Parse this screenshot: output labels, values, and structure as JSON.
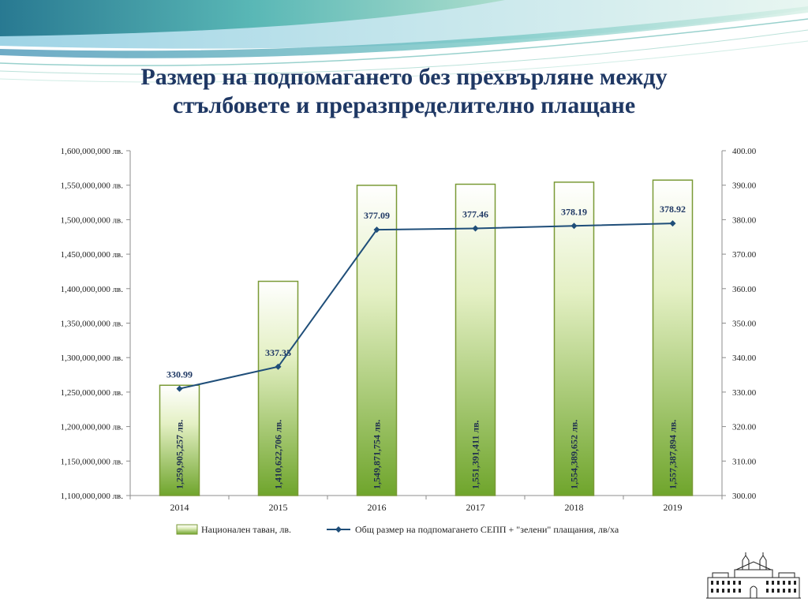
{
  "title": {
    "line1": "Размер на подпомагането без прехвърляне между",
    "line2": "стълбовете и преразпределително плащане"
  },
  "colors": {
    "title": "#1f3864",
    "line": "#1f4e79",
    "bar_top": "#ffffff",
    "bar_bottom": "#6fa52c",
    "bar_border": "#7a9a36"
  },
  "logo": {
    "icon": "building-illustration-icon"
  },
  "chart_data": {
    "type": "bar",
    "categories": [
      "2014",
      "2015",
      "2016",
      "2017",
      "2018",
      "2019"
    ],
    "series": [
      {
        "name": "Национален таван, лв.",
        "type": "bar",
        "axis": "left",
        "values": [
          1259905257,
          1410622706,
          1549871754,
          1551391411,
          1554389652,
          1557387894
        ],
        "labels": [
          "1,259,905,257 лв.",
          "1,410,622,706 лв.",
          "1,549,871,754 лв.",
          "1,551,391,411 лв.",
          "1,554,389,652 лв.",
          "1,557,387,894 лв."
        ]
      },
      {
        "name": "Общ размер на подпомагането СЕПП + \"зелени\" плащания, лв/ха",
        "type": "line",
        "axis": "right",
        "values": [
          330.99,
          337.35,
          377.09,
          377.46,
          378.19,
          378.92
        ],
        "labels": [
          "330.99",
          "337.35",
          "377.09",
          "377.46",
          "378.19",
          "378.92"
        ]
      }
    ],
    "y_left": {
      "range": [
        1100000000,
        1600000000
      ],
      "ticks": [
        "1,100,000,000 лв.",
        "1,150,000,000 лв.",
        "1,200,000,000 лв.",
        "1,250,000,000 лв.",
        "1,300,000,000 лв.",
        "1,350,000,000 лв.",
        "1,400,000,000 лв.",
        "1,450,000,000 лв.",
        "1,500,000,000 лв.",
        "1,550,000,000 лв.",
        "1,600,000,000 лв."
      ]
    },
    "y_right": {
      "range": [
        300,
        400
      ],
      "ticks": [
        "300.00",
        "310.00",
        "320.00",
        "330.00",
        "340.00",
        "350.00",
        "360.00",
        "370.00",
        "380.00",
        "390.00",
        "400.00"
      ]
    },
    "title": "",
    "xlabel": "",
    "ylabel": "",
    "grid": false,
    "legend": "bottom"
  }
}
